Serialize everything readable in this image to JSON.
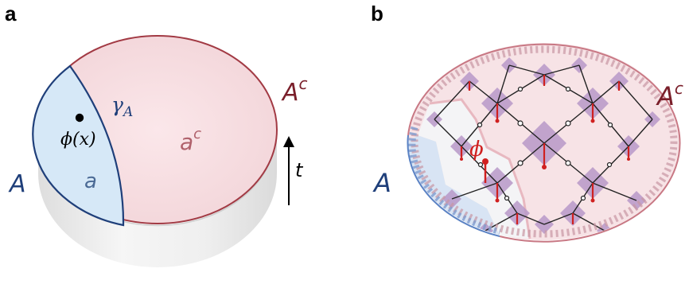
{
  "panels": {
    "a": {
      "label": "a",
      "region_A": "A",
      "region_a": "a",
      "complement_big": "A",
      "complement_big_sup": "c",
      "complement_small": "a",
      "complement_small_sup": "c",
      "curve_label": "γ",
      "curve_label_sub": "A",
      "field_label": "ϕ(x)",
      "time_label": "t"
    },
    "b": {
      "label": "b",
      "region_A": "A",
      "complement_big": "A",
      "complement_big_sup": "c",
      "field_label": "ϕ"
    }
  },
  "colors": {
    "dark_blue": "#1f3f7a",
    "light_blue": "#d6e8f7",
    "dark_red": "#7a1f2a",
    "light_red": "#f0d2d6",
    "red": "#d02020",
    "purple": "#b898c8"
  }
}
